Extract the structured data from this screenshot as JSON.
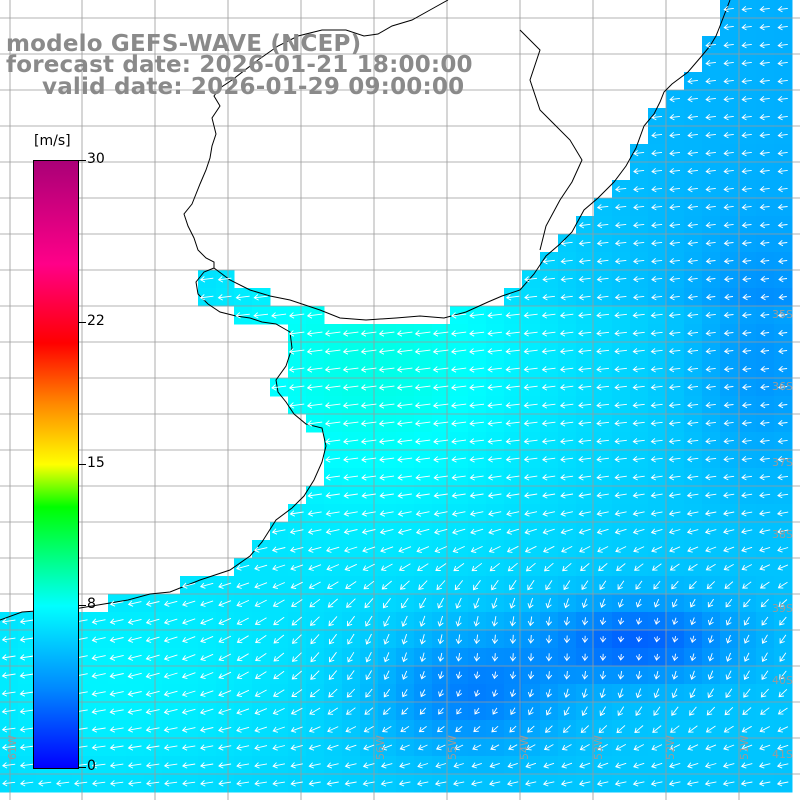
{
  "header": {
    "line1": "modelo GEFS-WAVE (NCEP)",
    "line2": "forecast date: 2026-01-21 18:00:00",
    "line3": "valid date: 2026-01-29 09:00:00"
  },
  "colorbar": {
    "unit": "[m/s]",
    "ticks": [
      {
        "label": "30",
        "value": 30
      },
      {
        "label": "22",
        "value": 22
      },
      {
        "label": "15",
        "value": 15
      },
      {
        "label": "8",
        "value": 8
      },
      {
        "label": "0",
        "value": 0
      }
    ],
    "min": 0,
    "max": 30
  },
  "grid": {
    "lat_labels": [
      "35S",
      "36S",
      "37S",
      "38S",
      "39S",
      "40S",
      "41S"
    ],
    "lon_labels": [
      "61W",
      "56W",
      "55W",
      "54W",
      "53W",
      "52W",
      "51W"
    ]
  },
  "map": {
    "extent": {
      "lon_min": -62,
      "lon_max": -51,
      "lat_min": -41.5,
      "lat_max": -30
    },
    "land_color": "#ffffff",
    "coast_color": "#000000",
    "grid_color": "#999999",
    "arrow_color": "#ffffff"
  }
}
